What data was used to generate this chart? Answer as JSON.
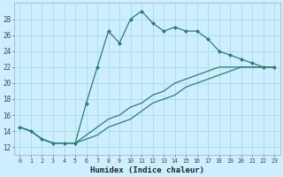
{
  "xlabel": "Humidex (Indice chaleur)",
  "bg_color": "#cceeff",
  "line_color": "#2e7d6e",
  "grid_color": "#aadddd",
  "xlim": [
    -0.5,
    23.5
  ],
  "ylim": [
    11,
    30
  ],
  "xticks": [
    0,
    1,
    2,
    3,
    4,
    5,
    6,
    7,
    8,
    9,
    10,
    11,
    12,
    13,
    14,
    15,
    16,
    17,
    18,
    19,
    20,
    21,
    22,
    23
  ],
  "yticks": [
    12,
    14,
    16,
    18,
    20,
    22,
    24,
    26,
    28
  ],
  "s1_x": [
    0,
    1,
    2,
    3,
    4,
    5,
    6,
    7,
    8,
    9,
    10,
    11,
    12,
    13,
    14,
    15,
    16,
    17,
    18,
    19,
    20,
    21,
    22,
    23
  ],
  "s1_y": [
    14.5,
    14.0,
    13.0,
    12.5,
    12.5,
    12.5,
    17.5,
    22.0,
    26.5,
    25.0,
    28.0,
    29.0,
    27.5,
    26.5,
    27.0,
    26.5,
    26.5,
    25.5,
    24.0,
    23.5,
    23.0,
    22.5,
    22.0,
    22.0
  ],
  "s2_x": [
    0,
    1,
    2,
    3,
    4,
    5,
    6,
    7,
    8,
    9,
    10,
    11,
    12,
    13,
    14,
    15,
    16,
    17,
    18,
    19,
    20,
    21,
    22,
    23
  ],
  "s2_y": [
    14.5,
    14.0,
    13.0,
    12.5,
    12.5,
    12.5,
    13.0,
    13.5,
    14.5,
    15.0,
    15.5,
    16.5,
    17.5,
    18.0,
    18.5,
    19.5,
    20.0,
    20.5,
    21.0,
    21.5,
    22.0,
    22.0,
    22.0,
    22.0
  ],
  "s3_x": [
    0,
    1,
    2,
    3,
    4,
    5,
    6,
    7,
    8,
    9,
    10,
    11,
    12,
    13,
    14,
    15,
    16,
    17,
    18,
    19,
    20,
    21,
    22,
    23
  ],
  "s3_y": [
    14.5,
    14.0,
    13.0,
    12.5,
    12.5,
    12.5,
    13.5,
    14.5,
    15.5,
    16.0,
    17.0,
    17.5,
    18.5,
    19.0,
    20.0,
    20.5,
    21.0,
    21.5,
    22.0,
    22.0,
    22.0,
    22.0,
    22.0,
    22.0
  ]
}
